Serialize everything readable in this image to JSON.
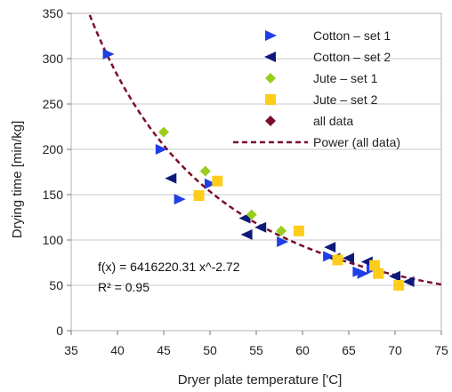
{
  "chart_data": {
    "type": "scatter",
    "xlabel": "Dryer plate temperature ['C]",
    "ylabel": "Drying time [min/kg]",
    "xlim": [
      35,
      75
    ],
    "ylim": [
      0,
      350
    ],
    "xticks": [
      "35",
      "40",
      "45",
      "50",
      "55",
      "60",
      "65",
      "70",
      "75"
    ],
    "yticks": [
      "0",
      "50",
      "100",
      "150",
      "200",
      "250",
      "300",
      "350"
    ],
    "grid": "horizontal",
    "legend_position": "top-right",
    "annotations": [
      "f(x) = 6416220.31 x^-2.72",
      "R² = 0.95"
    ],
    "series": [
      {
        "name": "Cotton – set 1",
        "marker": "triangle-right",
        "color": "#1f3fe6",
        "points": [
          [
            39,
            305
          ],
          [
            44.7,
            200
          ],
          [
            46.7,
            145
          ],
          [
            50,
            162
          ],
          [
            57.8,
            98
          ],
          [
            62.8,
            82
          ],
          [
            66,
            65
          ],
          [
            66.5,
            63
          ],
          [
            67.5,
            68
          ]
        ]
      },
      {
        "name": "Cotton – set 2",
        "marker": "triangle-left",
        "color": "#0d1a7a",
        "points": [
          [
            45.8,
            168
          ],
          [
            53.8,
            124
          ],
          [
            54,
            106
          ],
          [
            55.5,
            114
          ],
          [
            63,
            92
          ],
          [
            63.5,
            80
          ],
          [
            65,
            80
          ],
          [
            67,
            76
          ],
          [
            70,
            60
          ],
          [
            71.5,
            54
          ]
        ]
      },
      {
        "name": "Jute – set 1",
        "marker": "diamond",
        "color": "#9acd1e",
        "points": [
          [
            45,
            219
          ],
          [
            49.5,
            176
          ],
          [
            54.5,
            128
          ],
          [
            57.7,
            110
          ]
        ]
      },
      {
        "name": "Jute – set 2",
        "marker": "square",
        "color": "#ffcc1a",
        "points": [
          [
            48.8,
            149
          ],
          [
            50.8,
            165
          ],
          [
            59.6,
            110
          ],
          [
            63.8,
            78
          ],
          [
            67.8,
            72
          ],
          [
            68.2,
            63
          ],
          [
            70.4,
            50
          ]
        ]
      },
      {
        "name": "all data",
        "marker": "diamond",
        "color": "#7a0f2a",
        "points": []
      },
      {
        "name": "Power (all data)",
        "line": "dashed",
        "color": "#7a0f2a",
        "a": 6416220.31,
        "b": -2.72
      }
    ]
  }
}
